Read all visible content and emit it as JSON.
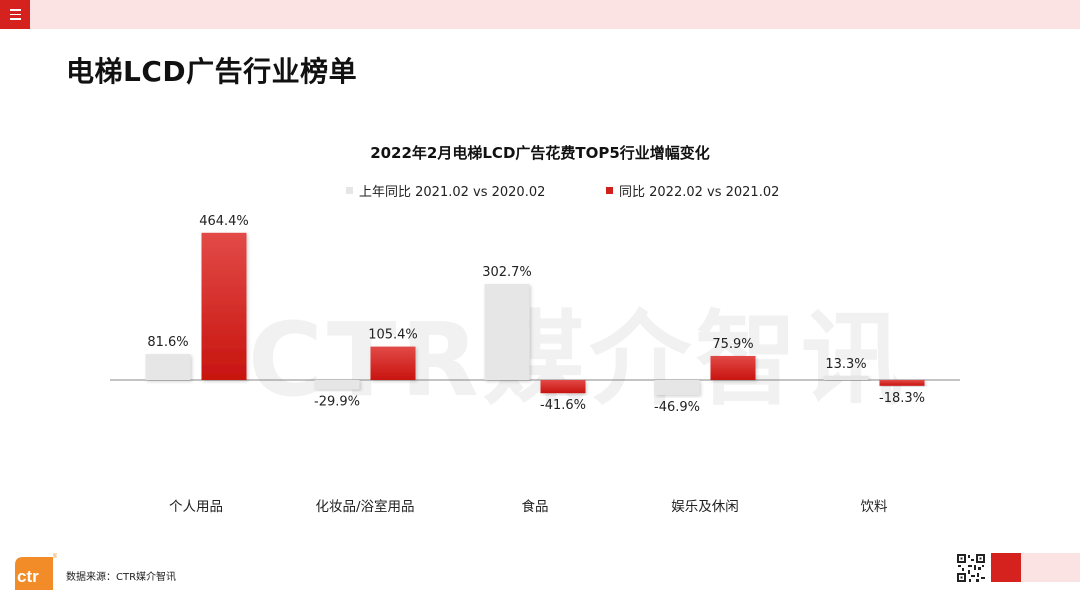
{
  "header": {
    "menu_icon": "hamburger-icon",
    "title": "电梯LCD广告行业榜单"
  },
  "watermark": "CTR媒介智讯",
  "colors": {
    "accent_red": "#d6221e",
    "header_pink": "#fbe3e4",
    "series_prev": "#e6e6e6",
    "series_curr": "#d0201c"
  },
  "chart_data": {
    "type": "bar",
    "title": "2022年2月电梯LCD广告花费TOP5行业增幅变化",
    "categories": [
      "个人用品",
      "化妆品/浴室用品",
      "食品",
      "娱乐及休闲",
      "饮料"
    ],
    "series": [
      {
        "name": "上年同比 2021.02 vs 2020.02",
        "values": [
          81.6,
          -29.9,
          302.7,
          -46.9,
          13.3
        ],
        "labels": [
          "81.6%",
          "-29.9%",
          "302.7%",
          "-46.9%",
          "13.3%"
        ]
      },
      {
        "name": "同比 2022.02 vs 2021.02",
        "values": [
          464.4,
          105.4,
          -41.6,
          75.9,
          -18.3
        ],
        "labels": [
          "464.4%",
          "105.4%",
          "-41.6%",
          "75.9%",
          "-18.3%"
        ]
      }
    ],
    "legend_position": "top",
    "grid": false,
    "unit": "%"
  },
  "footer": {
    "logo_text": "ctr",
    "logo_mark": "®",
    "source": "数据来源：CTR媒介智讯",
    "qr_icon": "qr-code-icon"
  }
}
